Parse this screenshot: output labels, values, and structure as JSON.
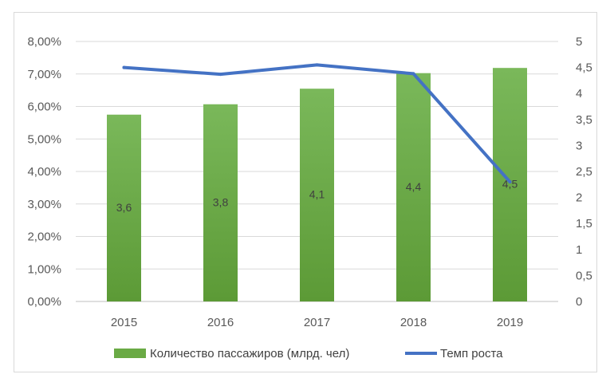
{
  "chart_data": {
    "type": "bar",
    "categories": [
      "2015",
      "2016",
      "2017",
      "2018",
      "2019"
    ],
    "series": [
      {
        "name": "Количество пассажиров (млрд. чел)",
        "chart_type": "bar",
        "axis": "left",
        "values": [
          3.6,
          3.8,
          4.1,
          4.4,
          4.5
        ],
        "data_labels": [
          "3,6",
          "3,8",
          "4,1",
          "4,4",
          "4,5"
        ],
        "color": "#6aaa45"
      },
      {
        "name": "Темп роста",
        "chart_type": "line",
        "axis": "right",
        "values": [
          4.5,
          4.37,
          4.55,
          4.38,
          2.3
        ],
        "color": "#4472c4"
      }
    ],
    "y_left": {
      "ticks": [
        "0,00%",
        "1,00%",
        "2,00%",
        "3,00%",
        "4,00%",
        "5,00%",
        "6,00%",
        "7,00%",
        "8,00%"
      ],
      "range": [
        0,
        8
      ]
    },
    "y_right": {
      "ticks": [
        "0",
        "0,5",
        "1",
        "1,5",
        "2",
        "2,5",
        "3",
        "3,5",
        "4",
        "4,5",
        "5"
      ],
      "range": [
        0,
        5
      ]
    },
    "grid": true,
    "legend_position": "bottom"
  }
}
